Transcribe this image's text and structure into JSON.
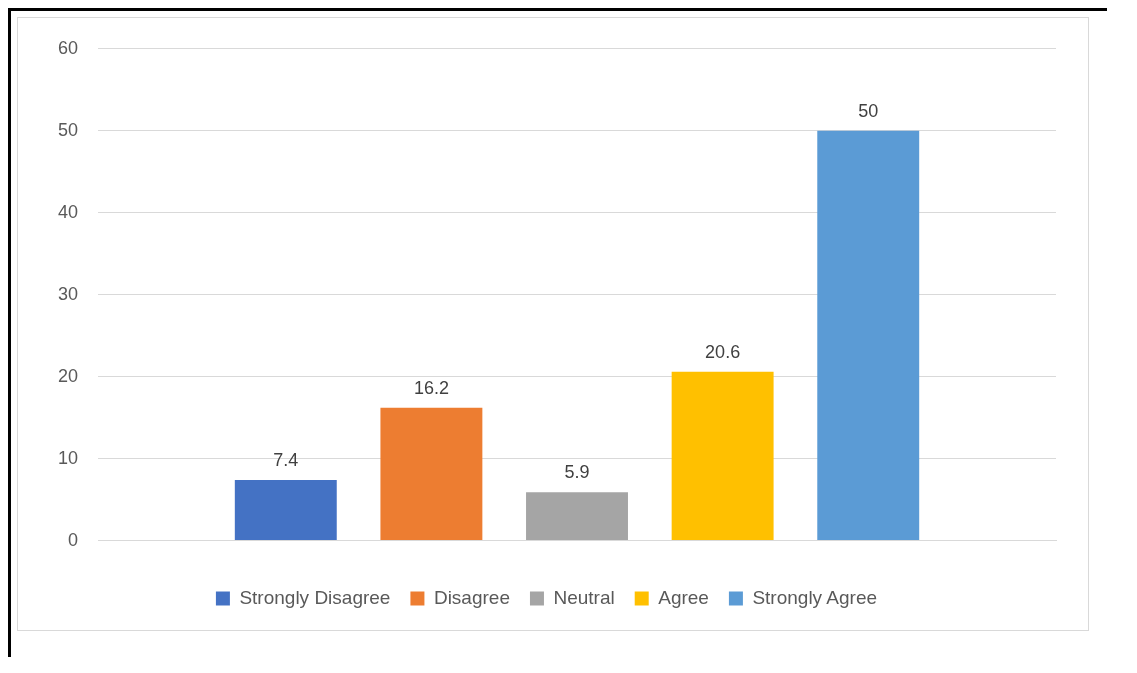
{
  "chart_data": {
    "type": "bar",
    "categories": [
      null
    ],
    "series": [
      {
        "name": "Strongly Disagree",
        "color": "#4472c4",
        "values": [
          7.4
        ]
      },
      {
        "name": "Disagree",
        "color": "#ed7d31",
        "values": [
          16.2
        ]
      },
      {
        "name": "Neutral",
        "color": "#a5a5a5",
        "values": [
          5.9
        ]
      },
      {
        "name": "Agree",
        "color": "#ffc000",
        "values": [
          20.6
        ]
      },
      {
        "name": "Strongly Agree",
        "color": "#5b9bd5",
        "values": [
          50
        ]
      }
    ],
    "ylim": [
      0,
      60
    ],
    "yticks": [
      0,
      10,
      20,
      30,
      40,
      50,
      60
    ],
    "grid": "y",
    "legend": "bottom",
    "data_labels": true
  }
}
